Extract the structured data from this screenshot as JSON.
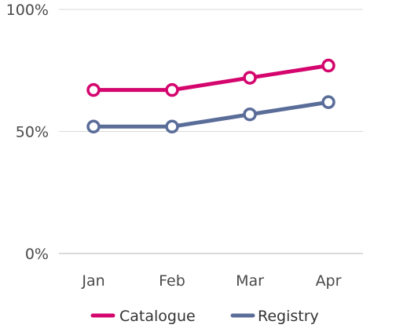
{
  "chart_data": {
    "type": "line",
    "title": "",
    "xlabel": "",
    "ylabel": "",
    "categories": [
      "Jan",
      "Feb",
      "Mar",
      "Apr"
    ],
    "ylim": [
      0,
      100
    ],
    "yticks": [
      {
        "value": 0,
        "label": "0%"
      },
      {
        "value": 50,
        "label": "50%"
      },
      {
        "value": 100,
        "label": "100%"
      }
    ],
    "grid": true,
    "legend_position": "bottom",
    "series": [
      {
        "name": "Catalogue",
        "color": "#d4066e",
        "values": [
          67,
          67,
          72,
          77
        ]
      },
      {
        "name": "Registry",
        "color": "#5a6d99",
        "values": [
          52,
          52,
          57,
          62
        ]
      }
    ]
  }
}
